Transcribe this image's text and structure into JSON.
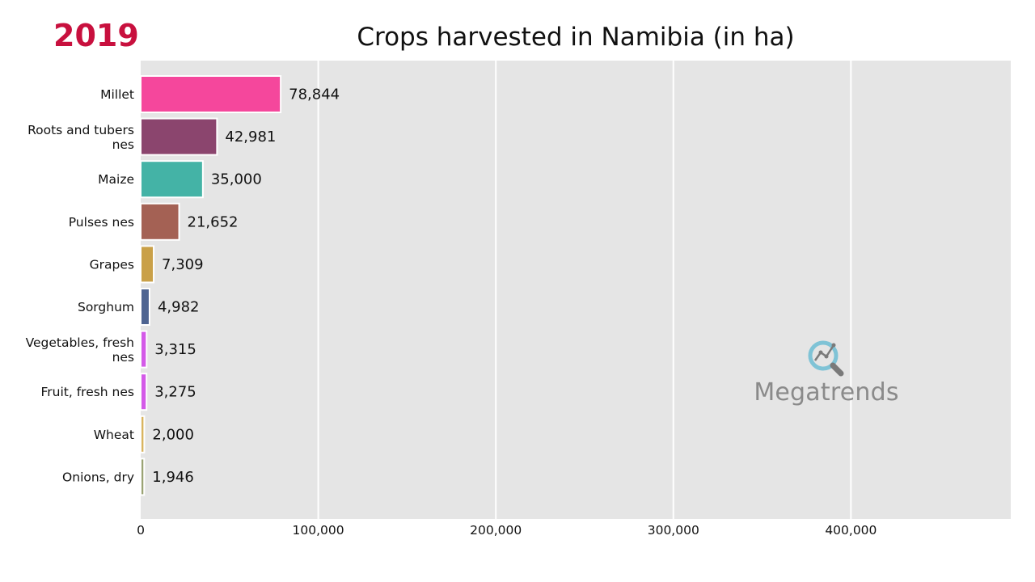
{
  "header": {
    "year": "2019",
    "year_color": "#c8103e"
  },
  "watermark": {
    "text": "Megatrends",
    "icon": "magnifier-trend-icon",
    "icon_color": "#7fc3d6"
  },
  "chart_data": {
    "type": "bar",
    "orientation": "horizontal",
    "title": "Crops harvested in Namibia (in ha)",
    "xlabel": "",
    "ylabel": "",
    "xlim": [
      0,
      490000
    ],
    "xticks": [
      0,
      100000,
      200000,
      300000,
      400000
    ],
    "xtick_labels": [
      "0",
      "100,000",
      "200,000",
      "300,000",
      "400,000"
    ],
    "grid": true,
    "background": "#e5e5e5",
    "categories": [
      [
        "Millet"
      ],
      [
        "Roots and tubers",
        "nes"
      ],
      [
        "Maize"
      ],
      [
        "Pulses nes"
      ],
      [
        "Grapes"
      ],
      [
        "Sorghum"
      ],
      [
        "Vegetables, fresh",
        "nes"
      ],
      [
        "Fruit, fresh nes"
      ],
      [
        "Wheat"
      ],
      [
        "Onions, dry"
      ]
    ],
    "values": [
      78844,
      42981,
      35000,
      21652,
      7309,
      4982,
      3315,
      3275,
      2000,
      1946
    ],
    "value_labels": [
      "78,844",
      "42,981",
      "35,000",
      "21,652",
      "7,309",
      "4,982",
      "3,315",
      "3,275",
      "2,000",
      "1,946"
    ],
    "colors": [
      "#f5479c",
      "#8b456e",
      "#44b3a6",
      "#a46154",
      "#c9a048",
      "#4e6491",
      "#d45ae8",
      "#d45ae8",
      "#d9b460",
      "#9aa374"
    ]
  }
}
